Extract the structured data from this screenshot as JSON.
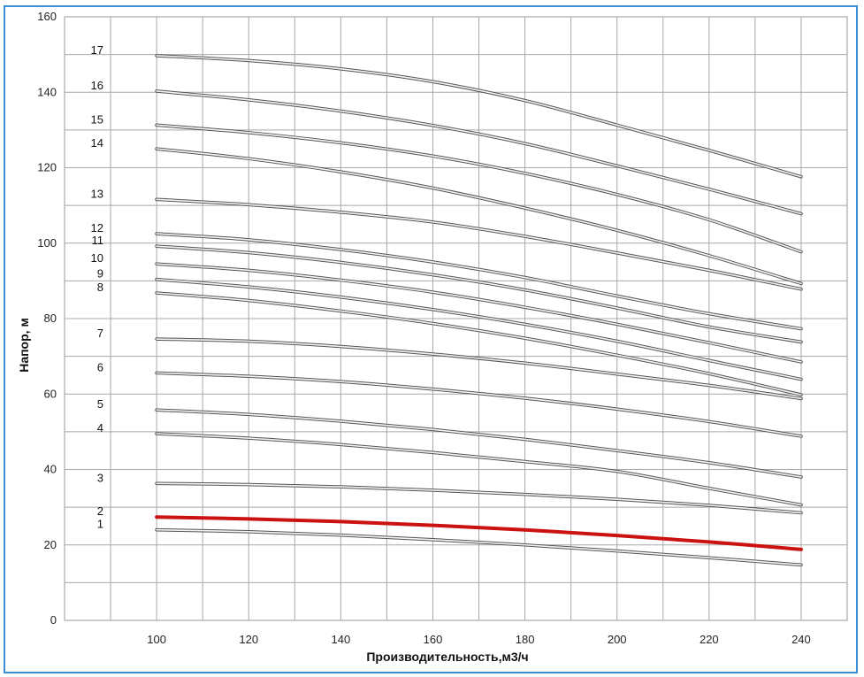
{
  "chart_data": {
    "type": "line",
    "title": "",
    "xlabel": "Производительность,м3/ч",
    "ylabel": "Напор, м",
    "xlim": [
      80,
      250
    ],
    "ylim": [
      0,
      160
    ],
    "x_ticks": [
      100,
      120,
      140,
      160,
      180,
      200,
      220,
      240
    ],
    "y_ticks": [
      0,
      20,
      40,
      60,
      80,
      100,
      120,
      140,
      160
    ],
    "grid": true,
    "x": [
      100,
      120,
      140,
      160,
      180,
      200,
      220,
      240
    ],
    "series": [
      {
        "name": "1",
        "color": "#d0d0d0",
        "values": [
          24.0,
          23.5,
          22.6,
          21.4,
          20.0,
          18.4,
          16.6,
          14.7
        ]
      },
      {
        "name": "2",
        "color": "#cc1111",
        "highlight": true,
        "values": [
          27.4,
          26.9,
          26.2,
          25.2,
          24.0,
          22.5,
          20.8,
          18.8
        ]
      },
      {
        "name": "3",
        "color": "#d0d0d0",
        "values": [
          36.3,
          36.0,
          35.4,
          34.5,
          33.4,
          32.1,
          30.5,
          28.5
        ]
      },
      {
        "name": "4",
        "color": "#d0d0d0",
        "values": [
          49.5,
          48.3,
          46.6,
          44.5,
          42.1,
          39.5,
          35.0,
          30.6
        ]
      },
      {
        "name": "5",
        "color": "#d0d0d0",
        "values": [
          55.8,
          54.6,
          52.8,
          50.6,
          48.0,
          45.0,
          41.8,
          38.0
        ]
      },
      {
        "name": "6",
        "color": "#d0d0d0",
        "values": [
          65.6,
          64.7,
          63.3,
          61.3,
          58.9,
          56.0,
          52.7,
          48.8
        ]
      },
      {
        "name": "7",
        "color": "#d0d0d0",
        "values": [
          74.6,
          74.0,
          72.6,
          70.6,
          68.2,
          65.3,
          62.3,
          58.8
        ]
      },
      {
        "name": "8",
        "color": "#d0d0d0",
        "values": [
          86.8,
          84.8,
          82.0,
          78.7,
          74.8,
          70.3,
          65.4,
          59.8
        ]
      },
      {
        "name": "9",
        "color": "#d0d0d0",
        "values": [
          90.4,
          88.4,
          85.7,
          82.4,
          78.5,
          74.0,
          68.9,
          63.9
        ]
      },
      {
        "name": "10",
        "color": "#d0d0d0",
        "values": [
          94.5,
          92.8,
          90.2,
          87.0,
          83.0,
          78.5,
          73.6,
          68.5
        ]
      },
      {
        "name": "11",
        "color": "#d0d0d0",
        "values": [
          99.2,
          97.5,
          94.9,
          91.6,
          87.6,
          82.8,
          77.8,
          73.8
        ]
      },
      {
        "name": "12",
        "color": "#d0d0d0",
        "values": [
          102.5,
          100.9,
          98.3,
          95.0,
          90.9,
          86.0,
          81.3,
          77.3
        ]
      },
      {
        "name": "13",
        "color": "#d0d0d0",
        "values": [
          111.6,
          110.2,
          108.2,
          105.6,
          101.8,
          97.4,
          92.8,
          87.8
        ]
      },
      {
        "name": "14",
        "color": "#d0d0d0",
        "values": [
          125.0,
          122.4,
          118.9,
          114.6,
          109.3,
          103.4,
          96.7,
          89.3
        ]
      },
      {
        "name": "15",
        "color": "#d0d0d0",
        "values": [
          131.3,
          129.3,
          126.6,
          123.1,
          118.5,
          112.9,
          106.2,
          97.7
        ]
      },
      {
        "name": "16",
        "color": "#d0d0d0",
        "values": [
          140.3,
          138.0,
          135.0,
          131.2,
          126.4,
          120.5,
          114.3,
          107.8
        ]
      },
      {
        "name": "17",
        "color": "#d0d0d0",
        "values": [
          149.7,
          148.4,
          146.2,
          142.8,
          137.8,
          131.3,
          124.6,
          117.6
        ]
      }
    ]
  }
}
